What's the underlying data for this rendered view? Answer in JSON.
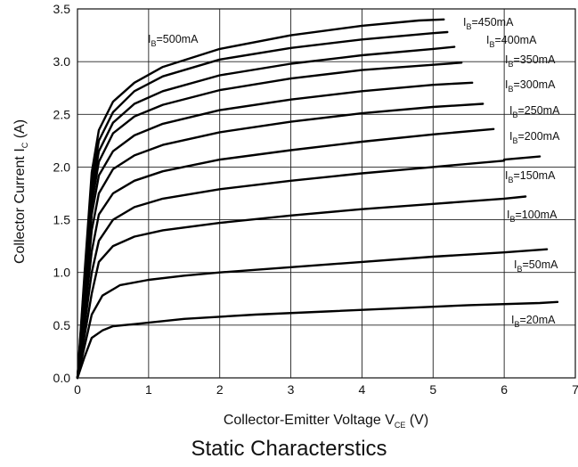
{
  "chart_data": {
    "type": "line",
    "title": "Static Characterstics",
    "xlabel": {
      "main": "Collector-Emitter Voltage V",
      "sub": "CE",
      "unit": " (V)"
    },
    "ylabel": {
      "main": "Collector Current I",
      "sub": "C",
      "unit": " (A)"
    },
    "xlim": [
      0,
      7
    ],
    "ylim": [
      0,
      3.5
    ],
    "xticks": [
      "0",
      "1",
      "2",
      "3",
      "4",
      "5",
      "6",
      "7"
    ],
    "yticks": [
      "0.0",
      "0.5",
      "1.0",
      "1.5",
      "2.0",
      "2.5",
      "3.0",
      "3.5"
    ],
    "grid": true,
    "series": [
      {
        "name": "IB=20mA",
        "label": {
          "pre": "I",
          "sub": "B",
          "post": "=20mA"
        },
        "points": [
          [
            0,
            0
          ],
          [
            0.1,
            0.2
          ],
          [
            0.2,
            0.38
          ],
          [
            0.35,
            0.45
          ],
          [
            0.5,
            0.49
          ],
          [
            0.8,
            0.51
          ],
          [
            1.5,
            0.56
          ],
          [
            2.5,
            0.6
          ],
          [
            3.5,
            0.63
          ],
          [
            4.5,
            0.66
          ],
          [
            5.5,
            0.69
          ],
          [
            6.5,
            0.71
          ],
          [
            6.75,
            0.72
          ]
        ]
      },
      {
        "name": "IB=50mA",
        "label": {
          "pre": "I",
          "sub": "B",
          "post": "=50mA"
        },
        "points": [
          [
            0,
            0
          ],
          [
            0.1,
            0.3
          ],
          [
            0.2,
            0.6
          ],
          [
            0.35,
            0.78
          ],
          [
            0.6,
            0.88
          ],
          [
            1.0,
            0.93
          ],
          [
            1.5,
            0.97
          ],
          [
            2.0,
            1.0
          ],
          [
            3.0,
            1.05
          ],
          [
            4.0,
            1.1
          ],
          [
            5.0,
            1.15
          ],
          [
            6.0,
            1.19
          ],
          [
            6.6,
            1.22
          ]
        ]
      },
      {
        "name": "IB=100mA",
        "label": {
          "pre": "I",
          "sub": "B",
          "post": "=100mA"
        },
        "points": [
          [
            0,
            0
          ],
          [
            0.1,
            0.4
          ],
          [
            0.2,
            0.8
          ],
          [
            0.3,
            1.1
          ],
          [
            0.5,
            1.25
          ],
          [
            0.8,
            1.34
          ],
          [
            1.2,
            1.4
          ],
          [
            2.0,
            1.47
          ],
          [
            3.0,
            1.54
          ],
          [
            4.0,
            1.6
          ],
          [
            5.0,
            1.65
          ],
          [
            6.0,
            1.7
          ],
          [
            6.3,
            1.72
          ]
        ]
      },
      {
        "name": "IB=150mA",
        "label": {
          "pre": "I",
          "sub": "B",
          "post": "=150mA"
        },
        "points": [
          [
            0,
            0
          ],
          [
            0.1,
            0.5
          ],
          [
            0.2,
            1.0
          ],
          [
            0.3,
            1.3
          ],
          [
            0.5,
            1.5
          ],
          [
            0.8,
            1.62
          ],
          [
            1.2,
            1.7
          ],
          [
            2.0,
            1.79
          ],
          [
            3.0,
            1.87
          ],
          [
            4.0,
            1.94
          ],
          [
            5.0,
            2.0
          ],
          [
            6.0,
            2.06
          ],
          [
            6.0,
            2.07
          ],
          [
            6.5,
            2.1
          ]
        ]
      },
      {
        "name": "IB=200mA",
        "label": {
          "pre": "I",
          "sub": "B",
          "post": "=200mA"
        },
        "points": [
          [
            0,
            0
          ],
          [
            0.1,
            0.6
          ],
          [
            0.2,
            1.2
          ],
          [
            0.3,
            1.55
          ],
          [
            0.5,
            1.75
          ],
          [
            0.8,
            1.87
          ],
          [
            1.2,
            1.96
          ],
          [
            2.0,
            2.07
          ],
          [
            3.0,
            2.16
          ],
          [
            4.0,
            2.24
          ],
          [
            5.0,
            2.31
          ],
          [
            5.85,
            2.36
          ]
        ]
      },
      {
        "name": "IB=250mA",
        "label": {
          "pre": "I",
          "sub": "B",
          "post": "=250mA"
        },
        "points": [
          [
            0,
            0
          ],
          [
            0.1,
            0.7
          ],
          [
            0.2,
            1.4
          ],
          [
            0.3,
            1.75
          ],
          [
            0.5,
            1.98
          ],
          [
            0.8,
            2.11
          ],
          [
            1.2,
            2.21
          ],
          [
            2.0,
            2.33
          ],
          [
            3.0,
            2.43
          ],
          [
            4.0,
            2.51
          ],
          [
            5.0,
            2.57
          ],
          [
            5.7,
            2.6
          ]
        ]
      },
      {
        "name": "IB=300mA",
        "label": {
          "pre": "I",
          "sub": "B",
          "post": "=300mA"
        },
        "points": [
          [
            0,
            0
          ],
          [
            0.1,
            0.8
          ],
          [
            0.2,
            1.55
          ],
          [
            0.3,
            1.92
          ],
          [
            0.5,
            2.15
          ],
          [
            0.8,
            2.3
          ],
          [
            1.2,
            2.41
          ],
          [
            2.0,
            2.54
          ],
          [
            3.0,
            2.64
          ],
          [
            4.0,
            2.72
          ],
          [
            5.0,
            2.78
          ],
          [
            5.55,
            2.8
          ]
        ]
      },
      {
        "name": "IB=350mA",
        "label": {
          "pre": "I",
          "sub": "B",
          "post": "=350mA"
        },
        "points": [
          [
            0,
            0
          ],
          [
            0.1,
            0.85
          ],
          [
            0.2,
            1.65
          ],
          [
            0.3,
            2.05
          ],
          [
            0.5,
            2.32
          ],
          [
            0.8,
            2.48
          ],
          [
            1.2,
            2.59
          ],
          [
            2.0,
            2.73
          ],
          [
            3.0,
            2.84
          ],
          [
            4.0,
            2.92
          ],
          [
            5.0,
            2.97
          ],
          [
            5.4,
            2.99
          ]
        ]
      },
      {
        "name": "IB=400mA",
        "label": {
          "pre": "I",
          "sub": "B",
          "post": "=400mA"
        },
        "points": [
          [
            0,
            0
          ],
          [
            0.1,
            0.9
          ],
          [
            0.2,
            1.75
          ],
          [
            0.3,
            2.15
          ],
          [
            0.5,
            2.42
          ],
          [
            0.8,
            2.6
          ],
          [
            1.2,
            2.72
          ],
          [
            2.0,
            2.87
          ],
          [
            3.0,
            2.98
          ],
          [
            4.0,
            3.06
          ],
          [
            5.0,
            3.12
          ],
          [
            5.3,
            3.14
          ]
        ]
      },
      {
        "name": "IB=450mA",
        "label": {
          "pre": "I",
          "sub": "B",
          "post": "=450mA"
        },
        "points": [
          [
            0,
            0
          ],
          [
            0.1,
            0.95
          ],
          [
            0.2,
            1.85
          ],
          [
            0.3,
            2.25
          ],
          [
            0.5,
            2.52
          ],
          [
            0.8,
            2.72
          ],
          [
            1.2,
            2.86
          ],
          [
            2.0,
            3.02
          ],
          [
            3.0,
            3.13
          ],
          [
            4.0,
            3.21
          ],
          [
            5.0,
            3.27
          ],
          [
            5.2,
            3.28
          ]
        ]
      },
      {
        "name": "IB=500mA",
        "label": {
          "pre": "I",
          "sub": "B",
          "post": "=500mA"
        },
        "points": [
          [
            0,
            0
          ],
          [
            0.1,
            1.0
          ],
          [
            0.2,
            1.95
          ],
          [
            0.3,
            2.35
          ],
          [
            0.5,
            2.62
          ],
          [
            0.8,
            2.8
          ],
          [
            1.2,
            2.95
          ],
          [
            2.0,
            3.12
          ],
          [
            3.0,
            3.25
          ],
          [
            4.0,
            3.34
          ],
          [
            4.8,
            3.39
          ],
          [
            5.15,
            3.4
          ]
        ]
      }
    ]
  }
}
